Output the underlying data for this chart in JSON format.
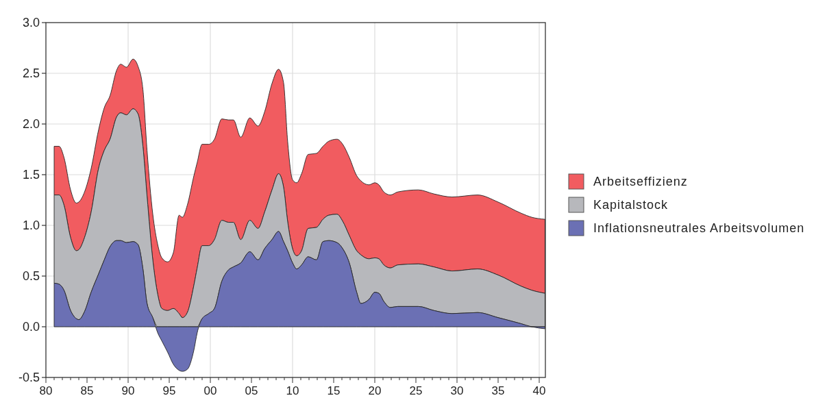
{
  "chart_data": {
    "type": "area",
    "stacked": true,
    "x": [
      1981.0,
      1981.6,
      1982.2,
      1983.0,
      1983.7,
      1984.0,
      1984.7,
      1985.5,
      1986.4,
      1987.1,
      1987.8,
      1988.6,
      1989.1,
      1989.8,
      1990.6,
      1991.2,
      1991.8,
      1992.3,
      1993.0,
      1993.6,
      1994.1,
      1994.8,
      1995.5,
      1996.2,
      1996.6,
      1997.2,
      1998.0,
      1998.4,
      1999.0,
      1999.8,
      2000.5,
      2001.4,
      2002.2,
      2002.8,
      2003.7,
      2004.8,
      2005.8,
      2006.6,
      2007.5,
      2008.3,
      2008.9,
      2009.4,
      2010.0,
      2010.5,
      2011.1,
      2011.9,
      2012.9,
      2013.7,
      2014.4,
      2015.4,
      2016.1,
      2016.9,
      2017.8,
      2018.3,
      2019.3,
      2020.0,
      2020.5,
      2021.1,
      2021.9,
      2022.8,
      2025.3,
      2027.2,
      2029.4,
      2032.5,
      2035.0,
      2037.8,
      2039.1,
      2040.7
    ],
    "series": [
      {
        "name": "Inflationsneutrales Arbeitsvolumen",
        "color": "#6b70b4",
        "values": [
          0.43,
          0.42,
          0.36,
          0.16,
          0.08,
          0.07,
          0.15,
          0.34,
          0.52,
          0.66,
          0.79,
          0.85,
          0.85,
          0.83,
          0.84,
          0.81,
          0.57,
          0.23,
          0.09,
          -0.06,
          -0.14,
          -0.25,
          -0.37,
          -0.43,
          -0.44,
          -0.42,
          -0.23,
          -0.06,
          0.08,
          0.13,
          0.18,
          0.45,
          0.56,
          0.59,
          0.63,
          0.74,
          0.66,
          0.77,
          0.86,
          0.94,
          0.84,
          0.75,
          0.63,
          0.57,
          0.61,
          0.69,
          0.66,
          0.84,
          0.85,
          0.83,
          0.77,
          0.63,
          0.34,
          0.23,
          0.27,
          0.34,
          0.33,
          0.25,
          0.19,
          0.2,
          0.2,
          0.16,
          0.13,
          0.14,
          0.09,
          0.03,
          0.0,
          -0.02
        ]
      },
      {
        "name": "Kapitalstock",
        "color": "#b7b8bc",
        "values": [
          0.87,
          0.88,
          0.84,
          0.72,
          0.67,
          0.69,
          0.73,
          0.79,
          1.04,
          1.08,
          1.06,
          1.22,
          1.26,
          1.26,
          1.31,
          1.29,
          1.21,
          1.06,
          0.57,
          0.38,
          0.32,
          0.41,
          0.55,
          0.56,
          0.53,
          0.56,
          0.64,
          0.64,
          0.72,
          0.67,
          0.68,
          0.6,
          0.47,
          0.44,
          0.23,
          0.31,
          0.31,
          0.36,
          0.49,
          0.57,
          0.54,
          0.29,
          0.14,
          0.13,
          0.14,
          0.28,
          0.32,
          0.22,
          0.25,
          0.28,
          0.27,
          0.27,
          0.41,
          0.48,
          0.4,
          0.34,
          0.34,
          0.36,
          0.39,
          0.41,
          0.42,
          0.43,
          0.42,
          0.43,
          0.42,
          0.37,
          0.36,
          0.35
        ]
      },
      {
        "name": "Arbeitseffizienz",
        "color": "#f15c60",
        "values": [
          0.48,
          0.48,
          0.47,
          0.47,
          0.47,
          0.47,
          0.45,
          0.43,
          0.38,
          0.42,
          0.43,
          0.46,
          0.48,
          0.47,
          0.49,
          0.47,
          0.56,
          0.45,
          0.45,
          0.49,
          0.5,
          0.48,
          0.55,
          0.97,
          0.99,
          1.06,
          1.08,
          1.04,
          1.0,
          1.0,
          0.99,
          1.0,
          1.01,
          1.01,
          1.01,
          1.01,
          1.01,
          0.99,
          1.05,
          1.03,
          1.03,
          0.79,
          0.68,
          0.72,
          0.76,
          0.73,
          0.73,
          0.72,
          0.73,
          0.74,
          0.76,
          0.77,
          0.74,
          0.73,
          0.73,
          0.74,
          0.73,
          0.72,
          0.72,
          0.72,
          0.73,
          0.72,
          0.73,
          0.73,
          0.72,
          0.72,
          0.72,
          0.73
        ]
      }
    ],
    "xlim": [
      1980,
      2040.75
    ],
    "xticks": [
      {
        "value": 1980,
        "label": "80"
      },
      {
        "value": 1981,
        "label": null
      },
      {
        "value": 1982,
        "label": null
      },
      {
        "value": 1983,
        "label": null
      },
      {
        "value": 1984,
        "label": null
      },
      {
        "value": 1985,
        "label": "85"
      },
      {
        "value": 1986,
        "label": null
      },
      {
        "value": 1987,
        "label": null
      },
      {
        "value": 1988,
        "label": null
      },
      {
        "value": 1989,
        "label": null
      },
      {
        "value": 1990,
        "label": "90"
      },
      {
        "value": 1991,
        "label": null
      },
      {
        "value": 1992,
        "label": null
      },
      {
        "value": 1993,
        "label": null
      },
      {
        "value": 1994,
        "label": null
      },
      {
        "value": 1995,
        "label": "95"
      },
      {
        "value": 1996,
        "label": null
      },
      {
        "value": 1997,
        "label": null
      },
      {
        "value": 1998,
        "label": null
      },
      {
        "value": 1999,
        "label": null
      },
      {
        "value": 2000,
        "label": "00"
      },
      {
        "value": 2001,
        "label": null
      },
      {
        "value": 2002,
        "label": null
      },
      {
        "value": 2003,
        "label": null
      },
      {
        "value": 2004,
        "label": null
      },
      {
        "value": 2005,
        "label": "05"
      },
      {
        "value": 2006,
        "label": null
      },
      {
        "value": 2007,
        "label": null
      },
      {
        "value": 2008,
        "label": null
      },
      {
        "value": 2009,
        "label": null
      },
      {
        "value": 2010,
        "label": "10"
      },
      {
        "value": 2011,
        "label": null
      },
      {
        "value": 2012,
        "label": null
      },
      {
        "value": 2013,
        "label": null
      },
      {
        "value": 2014,
        "label": null
      },
      {
        "value": 2015,
        "label": "15"
      },
      {
        "value": 2016,
        "label": null
      },
      {
        "value": 2017,
        "label": null
      },
      {
        "value": 2018,
        "label": null
      },
      {
        "value": 2019,
        "label": null
      },
      {
        "value": 2020,
        "label": "20"
      },
      {
        "value": 2021,
        "label": null
      },
      {
        "value": 2022,
        "label": null
      },
      {
        "value": 2023,
        "label": null
      },
      {
        "value": 2024,
        "label": null
      },
      {
        "value": 2025,
        "label": "25"
      },
      {
        "value": 2026,
        "label": null
      },
      {
        "value": 2027,
        "label": null
      },
      {
        "value": 2028,
        "label": null
      },
      {
        "value": 2029,
        "label": null
      },
      {
        "value": 2030,
        "label": "30"
      },
      {
        "value": 2031,
        "label": null
      },
      {
        "value": 2032,
        "label": null
      },
      {
        "value": 2033,
        "label": null
      },
      {
        "value": 2034,
        "label": null
      },
      {
        "value": 2035,
        "label": "35"
      },
      {
        "value": 2036,
        "label": null
      },
      {
        "value": 2037,
        "label": null
      },
      {
        "value": 2038,
        "label": null
      },
      {
        "value": 2039,
        "label": null
      },
      {
        "value": 2040,
        "label": "40"
      }
    ],
    "ylim": [
      -0.5,
      3.0
    ],
    "yticks": [
      {
        "value": -0.5,
        "label": "-0.5"
      },
      {
        "value": 0,
        "label": "0.0"
      },
      {
        "value": 0.5,
        "label": "0.5"
      },
      {
        "value": 1,
        "label": "1.0"
      },
      {
        "value": 1.5,
        "label": "1.5"
      },
      {
        "value": 2,
        "label": "2.0"
      },
      {
        "value": 2.5,
        "label": "2.5"
      },
      {
        "value": 3,
        "label": "3.0"
      }
    ],
    "grid": true,
    "legend": "right"
  }
}
